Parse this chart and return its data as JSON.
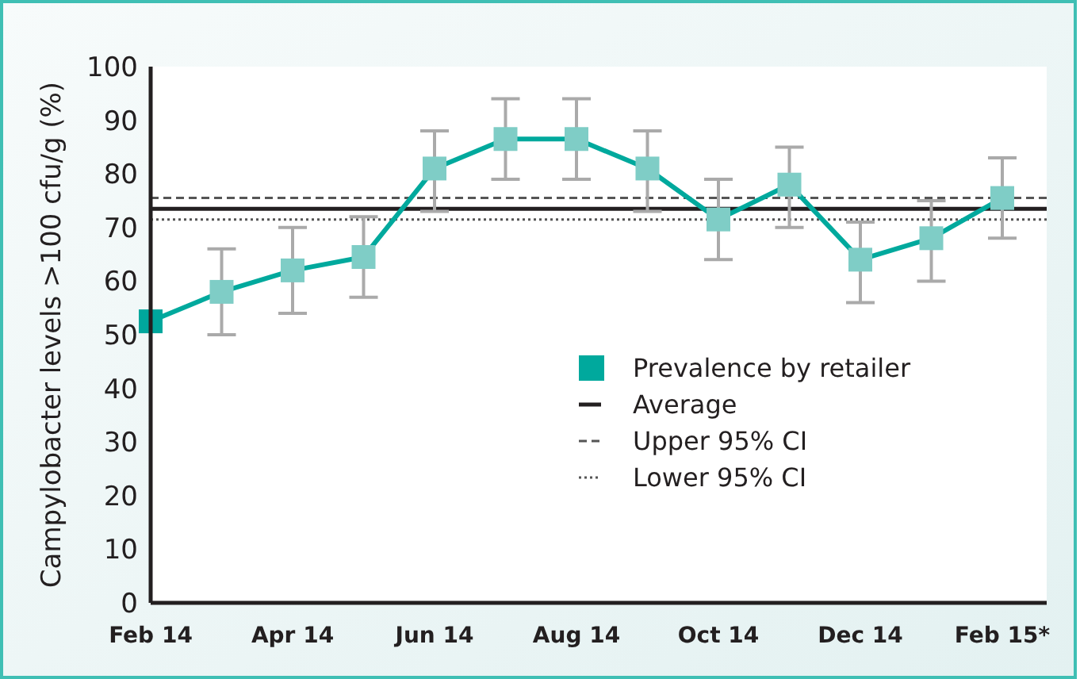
{
  "chart_data": {
    "type": "line",
    "ylabel": "Campylobacter levels >100 cfu/g (%)",
    "categories": [
      "Feb 14",
      null,
      "Apr 14",
      null,
      "Jun 14",
      null,
      "Aug 14",
      null,
      "Oct 14",
      null,
      "Dec 14",
      null,
      "Feb 15*"
    ],
    "series": [
      {
        "name": "Prevalence by retailer",
        "color": "#00a99d",
        "colors": [
          "#00a79d",
          "#7fcdc6",
          "#7fcdc6",
          "#7fcdc6",
          "#7fcdc6",
          "#7fcdc6",
          "#7fcdc6",
          "#7fcdc6",
          "#7fcdc6",
          "#7fcdc6",
          "#7fcdc6",
          "#7fcdc6",
          "#7fcdc6"
        ],
        "values": [
          52.5,
          58,
          62,
          64.5,
          81,
          86.5,
          86.5,
          81,
          71.5,
          78,
          64,
          68,
          75.5
        ],
        "errors": [
          null,
          [
            50,
            66
          ],
          [
            54,
            70
          ],
          [
            57,
            72
          ],
          [
            73,
            88
          ],
          [
            79,
            94
          ],
          [
            79,
            94
          ],
          [
            73,
            88
          ],
          [
            64,
            79
          ],
          [
            70,
            85
          ],
          [
            56,
            71
          ],
          [
            60,
            75
          ],
          [
            68,
            83
          ]
        ]
      }
    ],
    "ref_lines": [
      {
        "axis": "y",
        "value": 73.5,
        "label": "Average",
        "color": "#231f20",
        "line_style": "solid"
      },
      {
        "axis": "y",
        "value": 75.5,
        "label": "Upper 95% CI",
        "color": "#555555",
        "line_style": "dashed"
      },
      {
        "axis": "y",
        "value": 71.5,
        "label": "Lower 95% CI",
        "color": "#555555",
        "line_style": "dotted"
      }
    ],
    "ylim": [
      0,
      100
    ],
    "yticks": [
      0,
      10,
      20,
      30,
      40,
      50,
      60,
      70,
      80,
      90,
      100
    ],
    "marker": "square",
    "grid": false,
    "legend": "right"
  }
}
